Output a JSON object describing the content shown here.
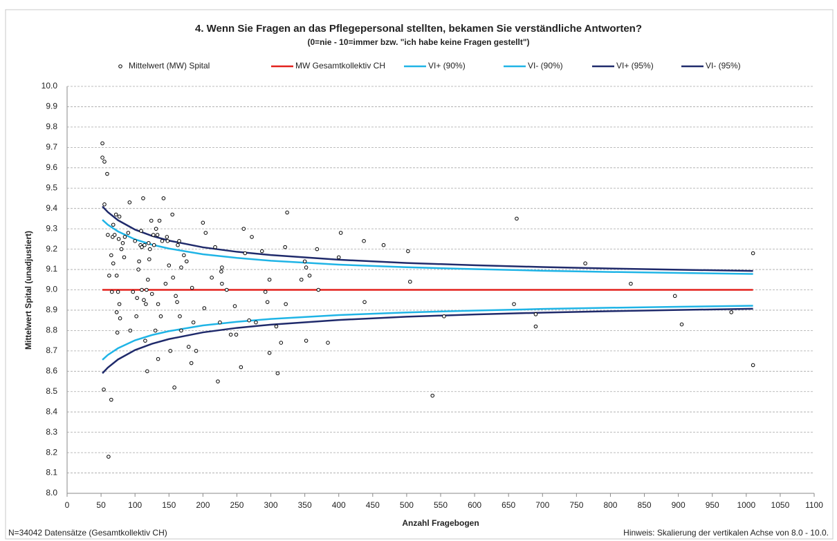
{
  "chart_data": {
    "type": "scatter",
    "title": "4. Wenn Sie Fragen an das Pflegepersonal stellten, bekamen Sie verständliche Antworten?",
    "subtitle": "(0=nie - 10=immer bzw. \"ich habe keine Fragen gestellt\")",
    "x_label": "Anzahl Fragebogen",
    "y_label": "Mittelwert Spital (unadjustiert)",
    "footnote_left": "N=34042 Datensätze (Gesamtkollektiv CH)",
    "footnote_right": "Hinweis: Skalierung der vertikalen Achse von 8.0 - 10.0.",
    "xlim": [
      0,
      1100
    ],
    "xticks": [
      0,
      50,
      100,
      150,
      200,
      250,
      300,
      350,
      400,
      450,
      500,
      550,
      600,
      650,
      700,
      750,
      800,
      850,
      900,
      950,
      1000,
      1050,
      1100
    ],
    "ylim": [
      8,
      10
    ],
    "yticks": [
      {
        "value": 8,
        "label": "8.0"
      },
      8.1,
      8.2,
      8.3,
      8.4,
      8.5,
      8.6,
      8.7,
      8.8,
      8.9,
      {
        "value": 9,
        "label": "9.0"
      },
      9.1,
      9.2,
      9.3,
      9.4,
      9.5,
      9.6,
      9.7,
      9.8,
      9.9,
      {
        "value": 10,
        "label": "10.0"
      }
    ],
    "grid": true,
    "legend": "top",
    "series": [
      {
        "name": "Mittelwert (MW) Spital",
        "type": "scatter",
        "color": "#000000",
        "x": [
          52,
          52,
          55,
          59,
          55,
          54,
          61,
          65,
          60,
          62,
          65,
          66,
          67,
          68,
          68,
          70,
          72,
          73,
          73,
          74,
          75,
          76,
          77,
          77,
          78,
          80,
          82,
          84,
          85,
          90,
          92,
          93,
          97,
          100,
          102,
          103,
          105,
          106,
          108,
          109,
          110,
          110,
          112,
          113,
          114,
          115,
          116,
          117,
          118,
          119,
          120,
          121,
          122,
          124,
          125,
          127,
          128,
          130,
          131,
          133,
          134,
          134,
          136,
          138,
          140,
          142,
          145,
          147,
          148,
          150,
          152,
          155,
          156,
          158,
          160,
          162,
          163,
          165,
          166,
          168,
          168,
          172,
          176,
          179,
          183,
          184,
          186,
          190,
          200,
          202,
          204,
          213,
          218,
          222,
          225,
          227,
          228,
          228,
          235,
          241,
          247,
          249,
          256,
          260,
          262,
          268,
          272,
          278,
          287,
          292,
          295,
          298,
          298,
          308,
          310,
          315,
          321,
          322,
          324,
          345,
          350,
          352,
          352,
          357,
          368,
          370,
          384,
          400,
          403,
          437,
          438,
          466,
          502,
          505,
          538,
          555,
          658,
          662,
          690,
          690,
          763,
          830,
          895,
          905,
          978,
          1010,
          1010
        ],
        "values": [
          9.72,
          9.65,
          9.63,
          9.57,
          9.42,
          8.51,
          8.18,
          8.46,
          9.27,
          9.07,
          9.17,
          8.99,
          9.26,
          9.32,
          9.13,
          9.27,
          9.37,
          9.07,
          8.89,
          8.79,
          8.99,
          9.25,
          9.36,
          8.93,
          8.86,
          9.2,
          9.23,
          9.16,
          9.26,
          9.28,
          9.43,
          8.8,
          8.99,
          9.24,
          8.87,
          8.96,
          9.1,
          9.14,
          9.22,
          9.29,
          9.21,
          9,
          9.45,
          8.95,
          9.22,
          8.75,
          8.93,
          9,
          8.6,
          9.05,
          9.23,
          9.15,
          9.2,
          9.34,
          8.98,
          9.27,
          9.22,
          8.8,
          9.3,
          9.27,
          8.66,
          8.93,
          9.34,
          8.87,
          9.24,
          9.45,
          9.03,
          9.26,
          9.24,
          9.12,
          8.7,
          9.37,
          9.06,
          8.52,
          8.97,
          8.94,
          9.22,
          9.24,
          8.87,
          9.11,
          8.8,
          9.17,
          9.14,
          8.72,
          8.64,
          9.01,
          8.84,
          8.7,
          9.33,
          8.91,
          9.28,
          9.06,
          9.21,
          8.55,
          8.84,
          9.09,
          9.11,
          9.03,
          9,
          8.78,
          8.92,
          8.78,
          8.62,
          9.3,
          9.18,
          8.85,
          9.26,
          8.84,
          9.19,
          8.99,
          8.94,
          9.05,
          8.69,
          8.82,
          8.59,
          8.74,
          9.21,
          8.93,
          9.38,
          9.05,
          9.14,
          8.75,
          9.11,
          9.07,
          9.2,
          9,
          8.74,
          9.16,
          9.28,
          9.24,
          8.94,
          9.22,
          9.19,
          9.04,
          8.48,
          8.87,
          8.93,
          9.35,
          8.88,
          8.82,
          9.13,
          9.03,
          8.97,
          8.83,
          8.89,
          9.18,
          8.63
        ]
      },
      {
        "name": "MW Gesamtkollektiv CH",
        "type": "line",
        "color": "#e3211c",
        "x": [
          52,
          1010
        ],
        "values": [
          9,
          9
        ]
      },
      {
        "name": "VI+ (90%)",
        "type": "line",
        "color": "#1fb4e6",
        "x": [
          52,
          60,
          75,
          100,
          125,
          150,
          200,
          250,
          300,
          400,
          500,
          600,
          700,
          800,
          900,
          1010
        ],
        "values": [
          9.344,
          9.32,
          9.287,
          9.248,
          9.222,
          9.203,
          9.175,
          9.157,
          9.143,
          9.124,
          9.111,
          9.102,
          9.094,
          9.088,
          9.083,
          9.078
        ]
      },
      {
        "name": "VI- (90%)",
        "type": "line",
        "color": "#1fb4e6",
        "x": [
          52,
          60,
          75,
          100,
          125,
          150,
          200,
          250,
          300,
          400,
          500,
          600,
          700,
          800,
          900,
          1010
        ],
        "values": [
          8.656,
          8.68,
          8.713,
          8.752,
          8.778,
          8.797,
          8.825,
          8.843,
          8.857,
          8.876,
          8.889,
          8.898,
          8.906,
          8.912,
          8.917,
          8.922
        ]
      },
      {
        "name": "VI+ (95%)",
        "type": "line",
        "color": "#1f2a6b",
        "x": [
          52,
          60,
          75,
          100,
          125,
          150,
          200,
          250,
          300,
          400,
          500,
          600,
          700,
          800,
          900,
          1010
        ],
        "values": [
          9.41,
          9.382,
          9.342,
          9.296,
          9.265,
          9.242,
          9.209,
          9.187,
          9.171,
          9.148,
          9.132,
          9.121,
          9.112,
          9.105,
          9.099,
          9.093
        ]
      },
      {
        "name": "VI- (95%)",
        "type": "line",
        "color": "#1f2a6b",
        "x": [
          52,
          60,
          75,
          100,
          125,
          150,
          200,
          250,
          300,
          400,
          500,
          600,
          700,
          800,
          900,
          1010
        ],
        "values": [
          8.59,
          8.618,
          8.658,
          8.704,
          8.735,
          8.758,
          8.791,
          8.813,
          8.829,
          8.852,
          8.868,
          8.879,
          8.888,
          8.895,
          8.901,
          8.907
        ]
      }
    ]
  }
}
